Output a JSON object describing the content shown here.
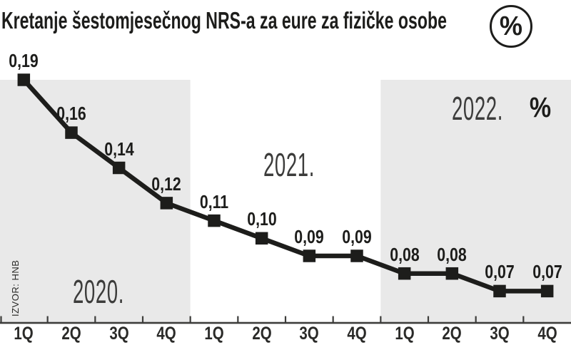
{
  "header": {
    "title": "Kretanje šestomjesečnog NRS-a za eure za fizičke osobe",
    "percent_badge": "%"
  },
  "source": "IZVOR: HNB",
  "colors": {
    "ink": "#1d1d1b",
    "band_gray": "#e9e9e9",
    "axis": "#3d3d3b",
    "background": "#ffffff"
  },
  "chart_data": {
    "type": "line",
    "title": "Kretanje šestomjesečnog NRS-a za eure za fizičke osobe",
    "unit": "%",
    "categories": [
      "1Q",
      "2Q",
      "3Q",
      "4Q",
      "1Q",
      "2Q",
      "3Q",
      "4Q",
      "1Q",
      "2Q",
      "3Q",
      "4Q"
    ],
    "values": [
      0.19,
      0.16,
      0.14,
      0.12,
      0.11,
      0.1,
      0.09,
      0.09,
      0.08,
      0.08,
      0.07,
      0.07
    ],
    "point_labels": [
      "0,19",
      "0,16",
      "0,14",
      "0,12",
      "0,11",
      "0,10",
      "0,09",
      "0,09",
      "0,08",
      "0,08",
      "0,07",
      "0,07"
    ],
    "year_groups": [
      {
        "label": "2020.",
        "quarters": 4,
        "shaded": true
      },
      {
        "label": "2021.",
        "quarters": 4,
        "shaded": false
      },
      {
        "label": "2022.",
        "quarters": 4,
        "shaded": true,
        "suffix": "%"
      }
    ],
    "ylim": [
      0.06,
      0.2
    ],
    "xlabel": "",
    "ylabel": "",
    "grid": false,
    "legend": "none",
    "source": "IZVOR: HNB"
  }
}
